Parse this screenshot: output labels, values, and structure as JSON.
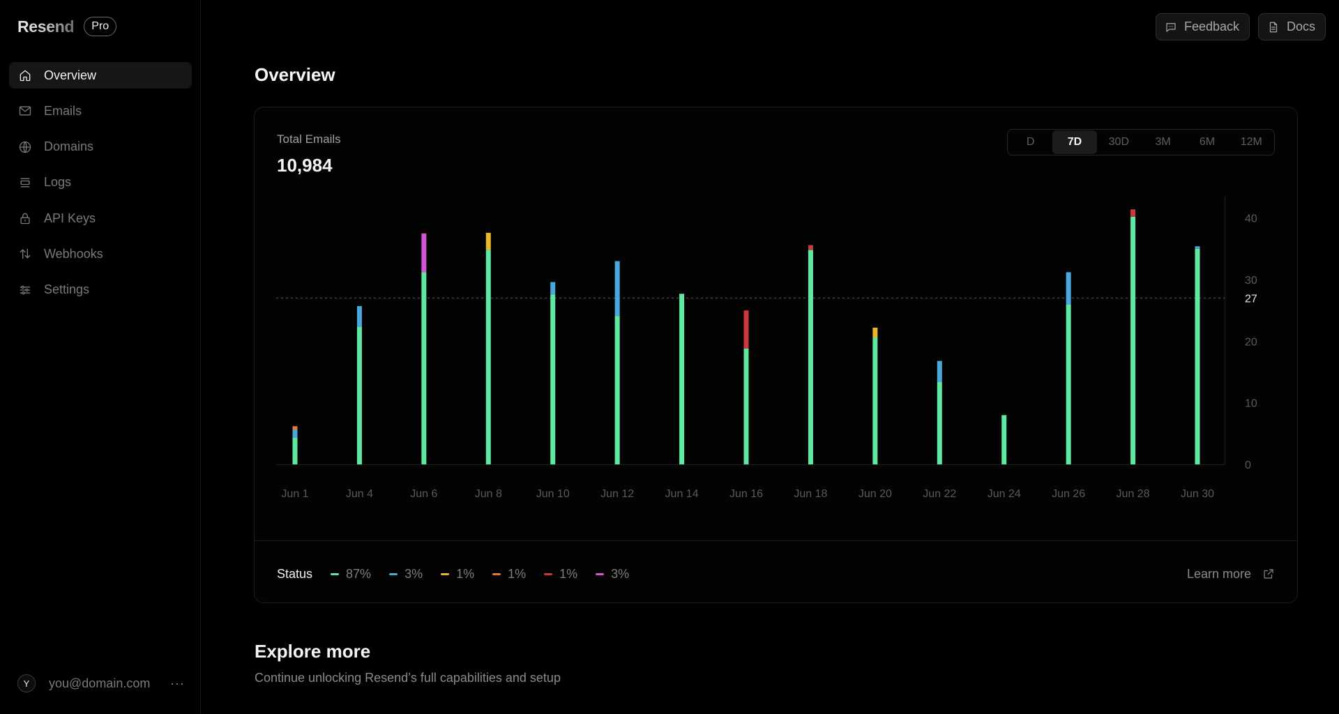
{
  "brand": {
    "name": "Resend",
    "plan_badge": "Pro"
  },
  "sidebar": {
    "items": [
      {
        "label": "Overview",
        "icon": "home-icon",
        "active": true
      },
      {
        "label": "Emails",
        "icon": "mail-icon",
        "active": false
      },
      {
        "label": "Domains",
        "icon": "globe-icon",
        "active": false
      },
      {
        "label": "Logs",
        "icon": "logs-icon",
        "active": false
      },
      {
        "label": "API Keys",
        "icon": "lock-icon",
        "active": false
      },
      {
        "label": "Webhooks",
        "icon": "arrows-updown-icon",
        "active": false
      },
      {
        "label": "Settings",
        "icon": "sliders-icon",
        "active": false
      }
    ]
  },
  "user": {
    "initial": "Y",
    "email": "you@domain.com",
    "more": "···"
  },
  "topbar": {
    "feedback_label": "Feedback",
    "docs_label": "Docs"
  },
  "page": {
    "title": "Overview"
  },
  "summary": {
    "label": "Total Emails",
    "value": "10,984"
  },
  "range": {
    "options": [
      "D",
      "7D",
      "30D",
      "3M",
      "6M",
      "12M"
    ],
    "selected": "7D"
  },
  "status": {
    "label": "Status",
    "legend": [
      {
        "key": "delivered",
        "color": "#5ee9a3",
        "percent": "87%"
      },
      {
        "key": "opened",
        "color": "#4ba8dd",
        "percent": "3%"
      },
      {
        "key": "delayed",
        "color": "#e8b72a",
        "percent": "1%"
      },
      {
        "key": "complained",
        "color": "#e07a3a",
        "percent": "1%"
      },
      {
        "key": "bounced",
        "color": "#c9393d",
        "percent": "1%"
      },
      {
        "key": "clicked",
        "color": "#d455d6",
        "percent": "3%"
      }
    ],
    "learn_more": "Learn more"
  },
  "explore": {
    "title": "Explore more",
    "subtitle": "Continue unlocking Resend’s full capabilities and setup"
  },
  "chart_data": {
    "type": "bar",
    "stacked": true,
    "categories": [
      "Jun 1",
      "Jun 4",
      "Jun 6",
      "Jun 8",
      "Jun 10",
      "Jun 12",
      "Jun 14",
      "Jun 16",
      "Jun 18",
      "Jun 20",
      "Jun 22",
      "Jun 24",
      "Jun 26",
      "Jun 28",
      "Jun 30"
    ],
    "series": [
      {
        "key": "delivered",
        "color": "#5ee9a3",
        "values": [
          4.3,
          22.3,
          31.2,
          34.8,
          27.6,
          24.1,
          27.7,
          18.8,
          34.8,
          20.6,
          13.4,
          8.0,
          26.0,
          40.2,
          35.0
        ]
      },
      {
        "key": "opened",
        "color": "#4ba8dd",
        "values": [
          1.3,
          3.4,
          0,
          0,
          2.0,
          8.9,
          0,
          0,
          0,
          0,
          3.4,
          0,
          5.2,
          0,
          0.4
        ]
      },
      {
        "key": "delayed",
        "color": "#e8b72a",
        "values": [
          0,
          0,
          0,
          2.8,
          0,
          0,
          0,
          0,
          0,
          1.6,
          0,
          0,
          0,
          0,
          0
        ]
      },
      {
        "key": "complained",
        "color": "#e07a3a",
        "values": [
          0.6,
          0,
          0,
          0,
          0,
          0,
          0,
          0,
          0,
          0,
          0,
          0,
          0,
          0,
          0
        ]
      },
      {
        "key": "bounced",
        "color": "#c9393d",
        "values": [
          0,
          0,
          0,
          0,
          0,
          0,
          0,
          6.2,
          0.8,
          0,
          0,
          0,
          0,
          1.2,
          0
        ]
      },
      {
        "key": "clicked",
        "color": "#d455d6",
        "values": [
          0,
          0,
          6.3,
          0,
          0,
          0,
          0,
          0,
          0,
          0,
          0,
          0,
          0,
          0,
          0
        ]
      }
    ],
    "yticks": [
      0,
      10,
      20,
      30,
      40
    ],
    "ylim": [
      0,
      42
    ],
    "reference_line": 27,
    "grid": false
  }
}
